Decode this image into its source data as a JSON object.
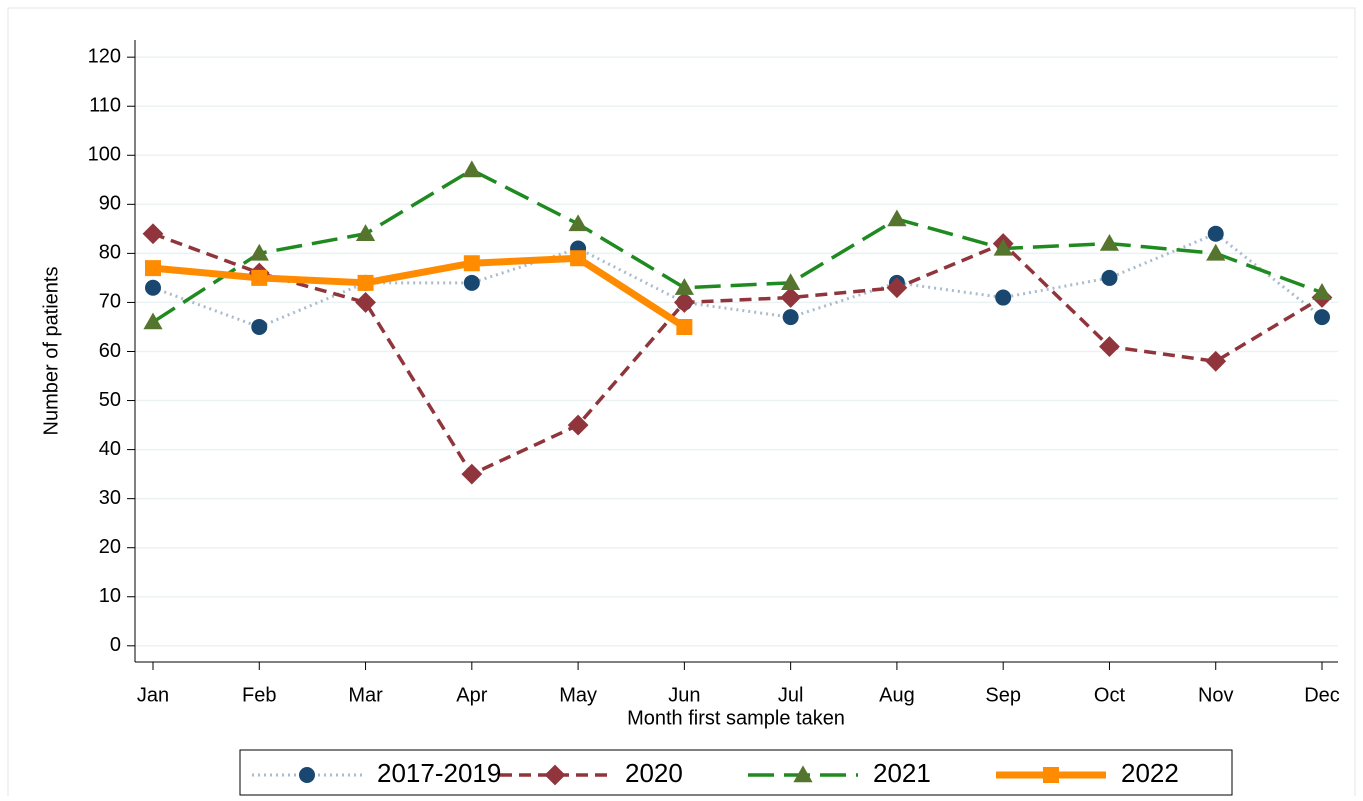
{
  "chart_data": {
    "type": "line",
    "x_label": "Month first sample taken",
    "y_label": "Number of patients",
    "categories": [
      "Jan",
      "Feb",
      "Mar",
      "Apr",
      "May",
      "Jun",
      "Jul",
      "Aug",
      "Sep",
      "Oct",
      "Nov",
      "Dec"
    ],
    "series": [
      {
        "name": "2017-2019",
        "color": "#1a476f",
        "line_color": "#a9bccf",
        "marker": "circle",
        "dash": "dot",
        "values": [
          73,
          65,
          74,
          74,
          81,
          70,
          67,
          74,
          71,
          75,
          84,
          67
        ]
      },
      {
        "name": "2020",
        "color": "#90353b",
        "line_color": "#90353b",
        "marker": "diamond",
        "dash": "dash",
        "values": [
          84,
          76,
          70,
          35,
          45,
          70,
          71,
          73,
          82,
          61,
          58,
          71
        ]
      },
      {
        "name": "2021",
        "color": "#55752f",
        "line_color": "#1f8a1f",
        "marker": "triangle",
        "dash": "longdash",
        "values": [
          66,
          80,
          84,
          97,
          86,
          73,
          74,
          87,
          81,
          82,
          80,
          72
        ]
      },
      {
        "name": "2022",
        "color": "#ff8c00",
        "line_color": "#ff8c00",
        "marker": "square",
        "dash": "solid",
        "values": [
          77,
          75,
          74,
          78,
          79,
          65,
          null,
          null,
          null,
          null,
          null,
          null
        ]
      }
    ],
    "ylim": [
      -3.3,
      123.5
    ],
    "yticks": [
      0,
      10,
      20,
      30,
      40,
      50,
      60,
      70,
      80,
      90,
      100,
      110,
      120
    ],
    "grid": true,
    "legend": "bottom"
  }
}
